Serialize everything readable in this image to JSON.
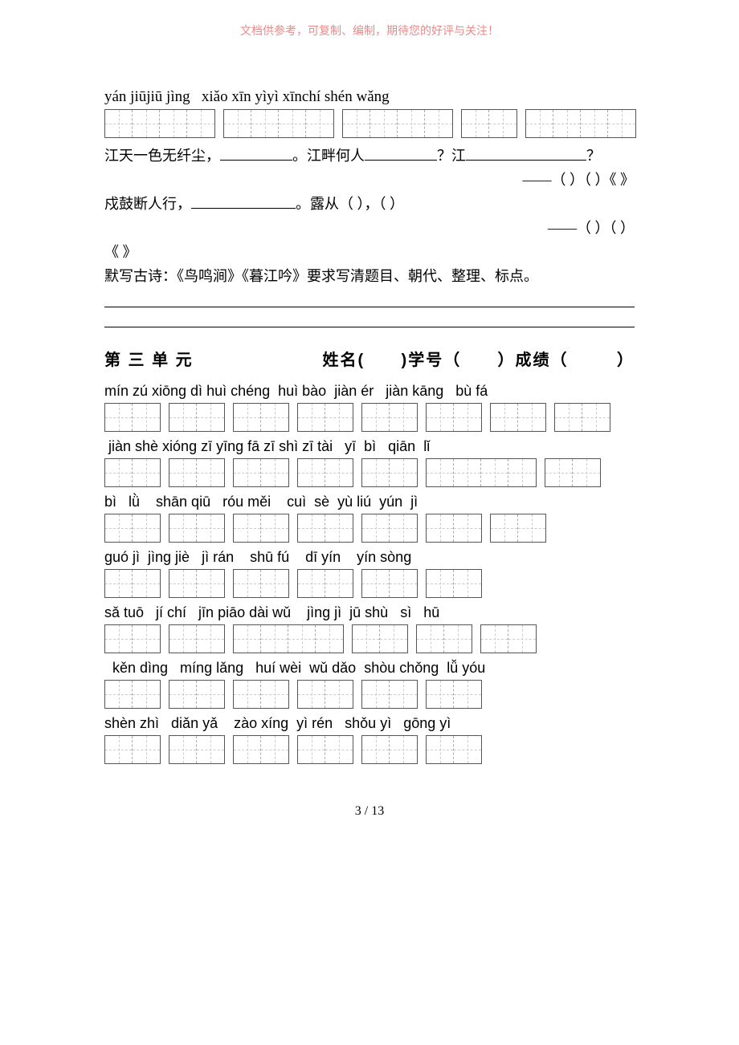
{
  "watermark": "文档供参考，可复制、编制，期待您的好评与关注！",
  "top_pinyin": "yán jiūjiū jìng   xiǎo xīn yìyì xīnchí shén wǎng",
  "top_grid_groups": [
    4,
    4,
    4,
    2,
    4
  ],
  "fill_lines": {
    "l1_a": "江天一色无纤尘，",
    "l1_b": "。江畔何人",
    "l1_c": "？江",
    "l1_d": "？",
    "l1_sig": "——（ ）（   ）《        》",
    "l2_a": "戍鼓断人行，",
    "l2_b": "。露从（        ），（                ）",
    "l2_sig": "——（    ）（    ）",
    "l3": "《      》",
    "l4": "默写古诗：《鸟鸣涧》《暮江吟》要求写清题目、朝代、整理、标点。"
  },
  "section3": {
    "title": "第 三 单 元",
    "labels": "姓名(      )学号（      ）成绩（        ）"
  },
  "rows": [
    {
      "pinyin": "mín zú xiōng dì huì chéng  huì bào  jiàn ér   jiàn kāng   bù fá",
      "groups": [
        2,
        2,
        2,
        2,
        2,
        2,
        2,
        2
      ]
    },
    {
      "pinyin": " jiàn shè xióng zī yīng fā zī shì zī tài   yī  bì   qiān  lǐ",
      "groups": [
        2,
        2,
        2,
        2,
        2,
        4,
        2
      ]
    },
    {
      "pinyin": "bì   lǜ    shān qiū   róu měi    cuì  sè  yù liú  yún  jì",
      "groups": [
        2,
        2,
        2,
        2,
        2,
        2,
        2
      ]
    },
    {
      "pinyin": "guó jì  jìng jiè   jì rán    shū fú    dī yín    yín sòng",
      "groups": [
        2,
        2,
        2,
        2,
        2,
        2
      ]
    },
    {
      "pinyin": "sǎ tuō   jí chí   jīn piāo dài wǔ    jìng jì  jū shù   sì   hū",
      "groups": [
        2,
        2,
        4,
        2,
        2,
        2
      ]
    },
    {
      "pinyin": "  kěn dìng   míng lǎng   huí wèi  wǔ dǎo  shòu chǒng  lǚ yóu",
      "groups": [
        2,
        2,
        2,
        2,
        2,
        2
      ]
    },
    {
      "pinyin": "shèn zhì   diǎn yǎ    zào xíng  yì rén   shǒu yì   gōng yì",
      "groups": [
        2,
        2,
        2,
        2,
        2,
        2
      ]
    }
  ],
  "page_number": "3  /  13",
  "colors": {
    "watermark": "#e98a8a",
    "text": "#000000",
    "border": "#555555",
    "dash": "#cccccc"
  }
}
